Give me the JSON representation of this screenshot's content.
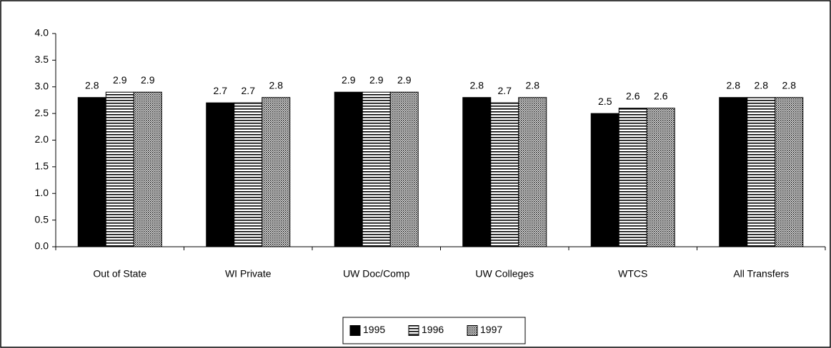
{
  "chart_data": {
    "type": "bar",
    "categories": [
      "Out of State",
      "WI Private",
      "UW Doc/Comp",
      "UW Colleges",
      "WTCS",
      "All Transfers"
    ],
    "series": [
      {
        "name": "1995",
        "color": "#000000",
        "pattern": "solid",
        "values": [
          2.8,
          2.7,
          2.9,
          2.8,
          2.5,
          2.8
        ]
      },
      {
        "name": "1996",
        "color": "#000000",
        "pattern": "horizontal",
        "values": [
          2.9,
          2.7,
          2.9,
          2.7,
          2.6,
          2.8
        ]
      },
      {
        "name": "1997",
        "color": "#000000",
        "pattern": "grid",
        "values": [
          2.9,
          2.8,
          2.9,
          2.8,
          2.6,
          2.8
        ]
      }
    ],
    "ylim": [
      0,
      4
    ],
    "yticks": [
      {
        "value": 0,
        "label": "0.0"
      },
      {
        "value": 0.5,
        "label": "0.5"
      },
      {
        "value": 1,
        "label": "1.0"
      },
      {
        "value": 1.5,
        "label": "1.5"
      },
      {
        "value": 2,
        "label": "2.0"
      },
      {
        "value": 2.5,
        "label": "2.5"
      },
      {
        "value": 3,
        "label": "3.0"
      },
      {
        "value": 3.5,
        "label": "3.5"
      },
      {
        "value": 4,
        "label": "4.0"
      }
    ],
    "legend": "bottom"
  }
}
